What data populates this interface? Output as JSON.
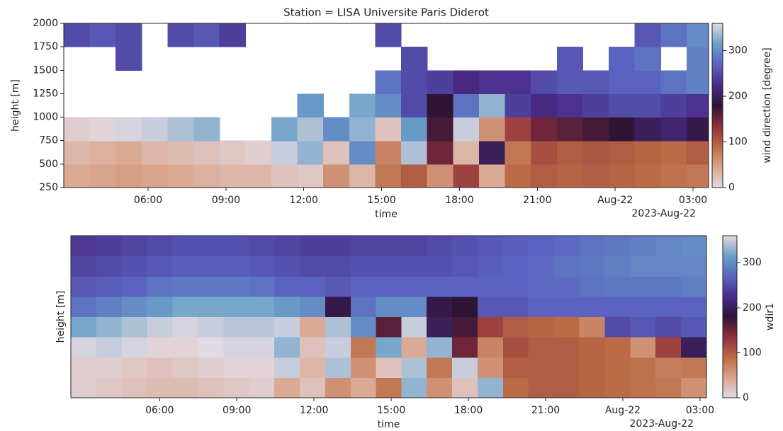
{
  "chart_data": [
    {
      "type": "heatmap",
      "title": "Station = LISA Universite Paris Diderot",
      "xlabel": "time",
      "ylabel": "height [m]",
      "x_offset_label": "2023-Aug-22",
      "colorbar_label": "wind direction [degree]",
      "colormap": [
        "#e2d9e2",
        "#d9a48b",
        "#bb6b45",
        "#8e2e3c",
        "#2f1436",
        "#4a2c8a",
        "#5a64c0",
        "#6aa1c8",
        "#e2d9e2"
      ],
      "clim": [
        0,
        360
      ],
      "cticks": [
        0,
        100,
        200,
        300
      ],
      "xlim": [
        2.75,
        27.6
      ],
      "xticks": [
        {
          "value": 6,
          "label": "06:00"
        },
        {
          "value": 9,
          "label": "09:00"
        },
        {
          "value": 12,
          "label": "12:00"
        },
        {
          "value": 15,
          "label": "15:00"
        },
        {
          "value": 18,
          "label": "18:00"
        },
        {
          "value": 21,
          "label": "21:00"
        },
        {
          "value": 24,
          "label": "Aug-22"
        },
        {
          "value": 27,
          "label": "03:00"
        }
      ],
      "ylim": [
        250,
        2000
      ],
      "yticks": [
        250,
        500,
        750,
        1000,
        1250,
        1500,
        1750,
        2000
      ],
      "xbins": [
        2.75,
        3.75,
        4.75,
        5.75,
        6.75,
        7.75,
        8.75,
        9.75,
        10.75,
        11.75,
        12.75,
        13.75,
        14.75,
        15.75,
        16.75,
        17.75,
        18.75,
        19.75,
        20.75,
        21.75,
        22.75,
        23.75,
        24.75,
        25.75,
        26.75,
        27.6
      ],
      "ybins": [
        250,
        500,
        750,
        1000,
        1250,
        1500,
        1750,
        2000
      ],
      "z": [
        [
          40,
          45,
          50,
          45,
          40,
          35,
          30,
          30,
          20,
          15,
          60,
          30,
          80,
          100,
          60,
          120,
          40,
          90,
          100,
          95,
          100,
          95,
          90,
          85,
          80
        ],
        [
          30,
          35,
          40,
          30,
          25,
          20,
          15,
          10,
          350,
          330,
          20,
          300,
          70,
          340,
          150,
          30,
          200,
          80,
          110,
          100,
          105,
          100,
          95,
          90,
          100
        ],
        [
          10,
          5,
          355,
          350,
          340,
          330,
          null,
          null,
          320,
          340,
          300,
          330,
          20,
          310,
          170,
          350,
          60,
          120,
          150,
          160,
          170,
          180,
          200,
          210,
          190
        ],
        [
          null,
          null,
          null,
          null,
          null,
          null,
          null,
          null,
          null,
          310,
          null,
          320,
          300,
          250,
          180,
          280,
          330,
          240,
          220,
          230,
          240,
          250,
          250,
          240,
          230
        ],
        [
          null,
          null,
          null,
          null,
          null,
          null,
          null,
          null,
          null,
          null,
          null,
          null,
          280,
          250,
          240,
          220,
          230,
          230,
          250,
          260,
          260,
          270,
          270,
          280,
          290
        ],
        [
          null,
          null,
          250,
          null,
          null,
          null,
          null,
          null,
          null,
          null,
          null,
          null,
          null,
          250,
          null,
          null,
          null,
          null,
          null,
          260,
          null,
          270,
          280,
          null,
          290
        ],
        [
          250,
          260,
          250,
          null,
          250,
          260,
          240,
          null,
          null,
          null,
          null,
          null,
          250,
          null,
          null,
          null,
          null,
          null,
          null,
          null,
          null,
          null,
          260,
          280,
          300
        ]
      ]
    },
    {
      "type": "heatmap",
      "xlabel": "time",
      "ylabel": "height [m]",
      "x_offset_label": "2023-Aug-22",
      "colorbar_label": "wdir1",
      "colormap": [
        "#e2d9e2",
        "#d9a48b",
        "#bb6b45",
        "#8e2e3c",
        "#2f1436",
        "#4a2c8a",
        "#5a64c0",
        "#6aa1c8",
        "#e2d9e2"
      ],
      "clim": [
        0,
        360
      ],
      "cticks": [
        0,
        100,
        200,
        300
      ],
      "xlim": [
        2.55,
        27.25
      ],
      "xticks": [
        {
          "value": 6,
          "label": "06:00"
        },
        {
          "value": 9,
          "label": "09:00"
        },
        {
          "value": 12,
          "label": "12:00"
        },
        {
          "value": 15,
          "label": "15:00"
        },
        {
          "value": 18,
          "label": "18:00"
        },
        {
          "value": 21,
          "label": "21:00"
        },
        {
          "value": 24,
          "label": "Aug-22"
        },
        {
          "value": 27,
          "label": "03:00"
        }
      ],
      "xbins": [
        2.55,
        3.54,
        4.53,
        5.51,
        6.5,
        7.49,
        8.48,
        9.47,
        10.45,
        11.44,
        12.43,
        13.42,
        14.41,
        15.39,
        16.38,
        17.37,
        18.36,
        19.35,
        20.33,
        21.32,
        22.31,
        23.3,
        24.29,
        25.27,
        26.26,
        27.25
      ],
      "z": [
        [
          10,
          15,
          20,
          25,
          25,
          20,
          15,
          10,
          40,
          20,
          60,
          40,
          80,
          330,
          60,
          20,
          330,
          90,
          100,
          100,
          95,
          90,
          85,
          80,
          60
        ],
        [
          10,
          10,
          15,
          20,
          15,
          10,
          5,
          5,
          350,
          30,
          340,
          60,
          20,
          340,
          80,
          350,
          60,
          100,
          100,
          100,
          95,
          90,
          85,
          75,
          80
        ],
        [
          355,
          350,
          355,
          5,
          5,
          0,
          355,
          355,
          330,
          20,
          350,
          80,
          320,
          40,
          330,
          150,
          70,
          110,
          100,
          100,
          95,
          90,
          60,
          120,
          200
        ],
        [
          320,
          330,
          340,
          350,
          355,
          350,
          345,
          345,
          350,
          40,
          340,
          300,
          160,
          350,
          200,
          170,
          120,
          100,
          95,
          90,
          70,
          250,
          260,
          250,
          260
        ],
        [
          280,
          290,
          300,
          310,
          320,
          320,
          320,
          320,
          310,
          300,
          190,
          280,
          300,
          300,
          190,
          180,
          260,
          260,
          270,
          270,
          270,
          270,
          270,
          270,
          270
        ],
        [
          260,
          265,
          270,
          280,
          285,
          285,
          285,
          280,
          270,
          270,
          260,
          270,
          270,
          270,
          270,
          270,
          270,
          270,
          275,
          275,
          280,
          285,
          285,
          285,
          290
        ],
        [
          245,
          250,
          255,
          260,
          265,
          265,
          265,
          260,
          255,
          250,
          250,
          255,
          255,
          255,
          255,
          260,
          265,
          270,
          275,
          280,
          285,
          290,
          295,
          295,
          295
        ],
        [
          235,
          240,
          245,
          250,
          255,
          255,
          255,
          250,
          245,
          240,
          240,
          245,
          245,
          245,
          250,
          255,
          260,
          265,
          270,
          275,
          280,
          285,
          290,
          295,
          300
        ]
      ]
    }
  ]
}
